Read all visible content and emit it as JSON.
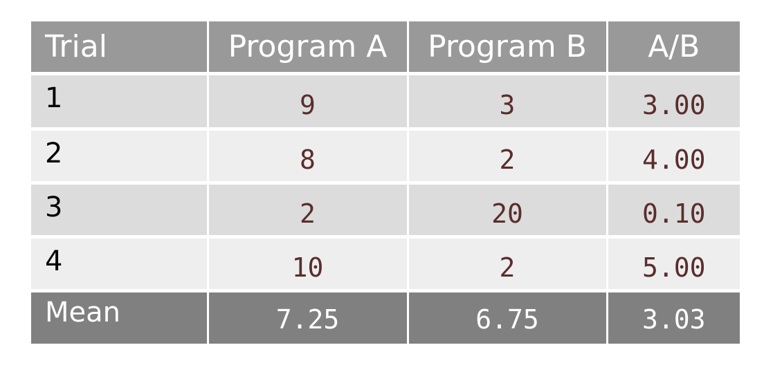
{
  "table": {
    "header": [
      "Trial",
      "Program A",
      "Program B",
      "A/B"
    ],
    "rows": [
      [
        "1",
        "9",
        "3",
        "3.00"
      ],
      [
        "2",
        "8",
        "2",
        "4.00"
      ],
      [
        "3",
        "2",
        "20",
        "0.10"
      ],
      [
        "4",
        "10",
        "2",
        "5.00"
      ]
    ],
    "footer": [
      "Mean",
      "7.25",
      "6.75",
      "3.03"
    ]
  }
}
